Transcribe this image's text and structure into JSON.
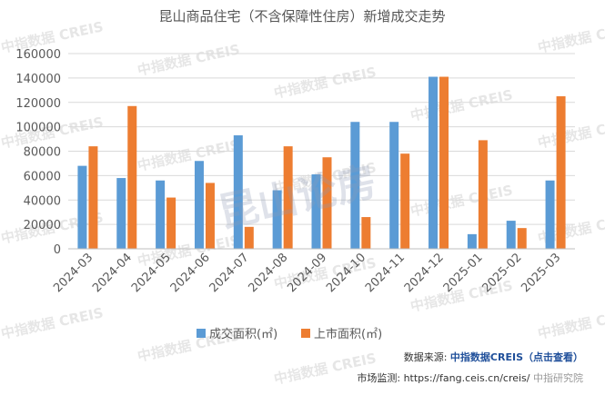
{
  "chart_data": {
    "type": "bar",
    "title": "昆山商品住宅（不含保障性住房）新增成交走势",
    "categories": [
      "2024-03",
      "2024-04",
      "2024-05",
      "2024-06",
      "2024-07",
      "2024-08",
      "2024-09",
      "2024-10",
      "2024-11",
      "2024-12",
      "2025-01",
      "2025-02",
      "2025-03"
    ],
    "series": [
      {
        "name": "成交面积(㎡)",
        "color": "#5b9bd5",
        "values": [
          68000,
          58000,
          56000,
          72000,
          93000,
          48000,
          61000,
          104000,
          104000,
          141000,
          12000,
          23000,
          56000
        ]
      },
      {
        "name": "上市面积(㎡)",
        "color": "#ed7d31",
        "values": [
          84000,
          117000,
          42000,
          54000,
          18000,
          84000,
          75000,
          26000,
          78000,
          141000,
          89000,
          17000,
          125000
        ]
      }
    ],
    "yticks": [
      "0",
      "20000",
      "40000",
      "60000",
      "80000",
      "100000",
      "120000",
      "140000",
      "160000"
    ],
    "ylim": [
      0,
      160000
    ],
    "legend_position": "bottom"
  },
  "source": {
    "label": "数据来源:",
    "value": "中指数据CREIS（点击查看）"
  },
  "monitor": {
    "label": "市场监测:",
    "value": "https://fang.ceis.cn/creis/"
  },
  "watermark": "中指数据 CREIS",
  "overlay_watermark": "昆山论房",
  "weibo": "中指研究院"
}
